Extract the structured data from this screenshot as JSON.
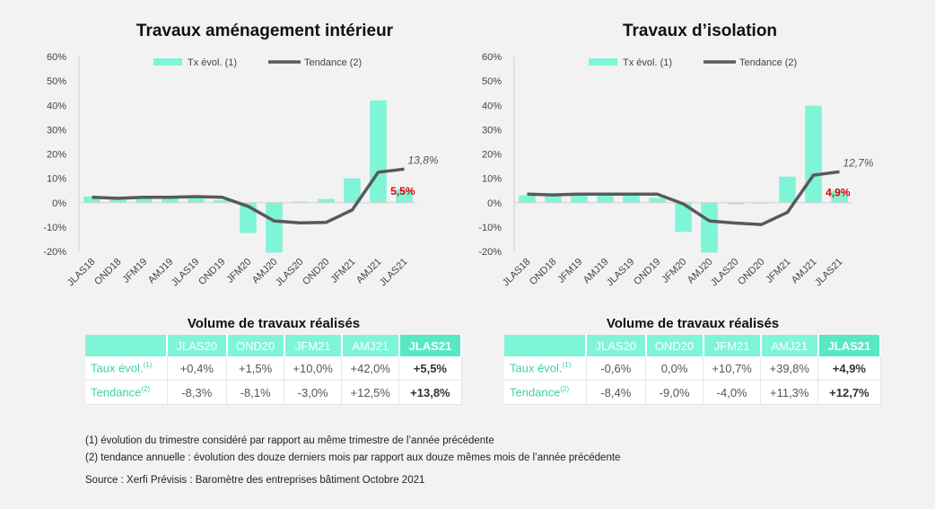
{
  "charts": [
    {
      "title": "Travaux aménagement intérieur",
      "chart_data": {
        "type": "bar",
        "categories": [
          "JLAS18",
          "OND18",
          "JFM19",
          "AMJ19",
          "JLAS19",
          "OND19",
          "JFM20",
          "AMJ20",
          "JLAS20",
          "OND20",
          "JFM21",
          "AMJ21",
          "JLAS21"
        ],
        "series": [
          {
            "name": "Tx évol. (1)",
            "type": "bar",
            "values": [
              2.5,
              1.5,
              2.0,
              2.0,
              3.0,
              1.0,
              -12.5,
              -20.5,
              0.4,
              1.5,
              10.0,
              42.0,
              5.5
            ]
          },
          {
            "name": "Tendance (2)",
            "type": "line",
            "values": [
              2.2,
              1.8,
              2.2,
              2.2,
              2.5,
              2.2,
              -1.5,
              -7.5,
              -8.3,
              -8.1,
              -3.0,
              12.5,
              13.8
            ]
          }
        ],
        "ylim": [
          -20,
          60
        ],
        "yticks": [
          "-20%",
          "-10%",
          "0%",
          "10%",
          "20%",
          "30%",
          "40%",
          "50%",
          "60%"
        ],
        "annotations": {
          "last_bar": "5,5%",
          "last_line": "13,8%"
        },
        "legend": "top-center"
      },
      "table": {
        "title": "Volume de travaux réalisés",
        "headers": [
          "JLAS20",
          "OND20",
          "JFM21",
          "AMJ21",
          "JLAS21"
        ],
        "rows": [
          {
            "label": "Taux évol.",
            "sup": "(1)",
            "values": [
              "+0,4%",
              "+1,5%",
              "+10,0%",
              "+42,0%",
              "+5,5%"
            ]
          },
          {
            "label": "Tendance",
            "sup": "(2)",
            "values": [
              "-8,3%",
              "-8,1%",
              "-3,0%",
              "+12,5%",
              "+13,8%"
            ]
          }
        ]
      }
    },
    {
      "title": "Travaux d’isolation",
      "chart_data": {
        "type": "bar",
        "categories": [
          "JLAS18",
          "OND18",
          "JFM19",
          "AMJ19",
          "JLAS19",
          "OND19",
          "JFM20",
          "AMJ20",
          "JLAS20",
          "OND20",
          "JFM21",
          "AMJ21",
          "JLAS21"
        ],
        "series": [
          {
            "name": "Tx évol. (1)",
            "type": "bar",
            "values": [
              3.0,
              3.0,
              3.5,
              3.0,
              3.5,
              2.0,
              -12.0,
              -20.5,
              -0.6,
              0.0,
              10.7,
              39.8,
              4.9
            ]
          },
          {
            "name": "Tendance (2)",
            "type": "line",
            "values": [
              3.5,
              3.2,
              3.5,
              3.5,
              3.5,
              3.5,
              -0.5,
              -7.5,
              -8.4,
              -9.0,
              -4.0,
              11.3,
              12.7
            ]
          }
        ],
        "ylim": [
          -20,
          60
        ],
        "yticks": [
          "-20%",
          "-10%",
          "0%",
          "10%",
          "20%",
          "30%",
          "40%",
          "50%",
          "60%"
        ],
        "annotations": {
          "last_bar": "4,9%",
          "last_line": "12,7%"
        },
        "legend": "top-center"
      },
      "table": {
        "title": "Volume de travaux réalisés",
        "headers": [
          "JLAS20",
          "OND20",
          "JFM21",
          "AMJ21",
          "JLAS21"
        ],
        "rows": [
          {
            "label": "Taux évol.",
            "sup": "(1)",
            "values": [
              "-0,6%",
              "0,0%",
              "+10,7%",
              "+39,8%",
              "+4,9%"
            ]
          },
          {
            "label": "Tendance",
            "sup": "(2)",
            "values": [
              "-8,4%",
              "-9,0%",
              "-4,0%",
              "+11,3%",
              "+12,7%"
            ]
          }
        ]
      }
    }
  ],
  "colors": {
    "bar": "#7ff5d8",
    "line": "#595959",
    "highlight": "#e00000",
    "table_header": "#7ff5d8",
    "table_header_hl": "#58e8c4",
    "row_label": "#3fcfaa"
  },
  "notes": [
    "(1) évolution du trimestre considéré par rapport au même trimestre de l’année précédente",
    "(2) tendance annuelle : évolution des douze derniers mois par rapport aux douze mêmes mois de l’année précédente"
  ],
  "source": "Source : Xerfi Prévisis : Baromètre des entreprises bâtiment Octobre 2021"
}
